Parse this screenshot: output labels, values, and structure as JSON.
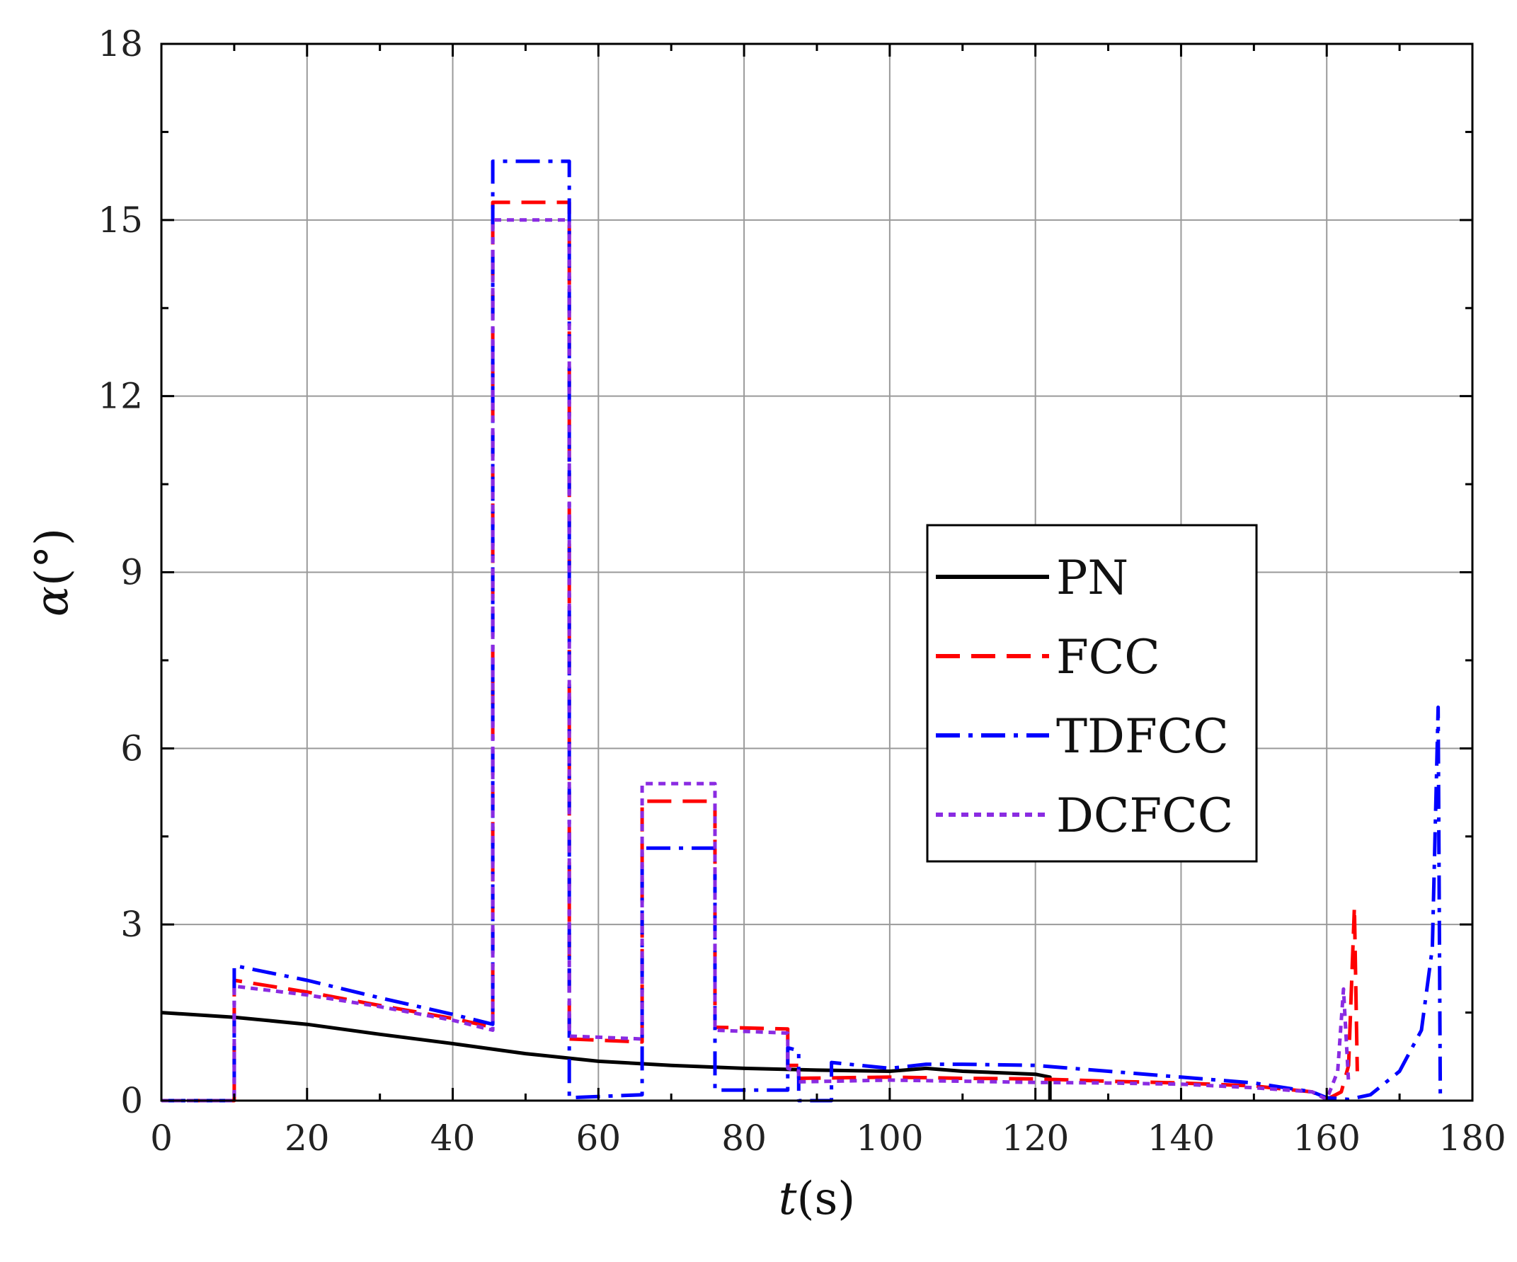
{
  "chart_data": {
    "type": "line",
    "title": "",
    "xlabel": {
      "symbol": "t",
      "unit": "(s)"
    },
    "ylabel": {
      "symbol": "α",
      "unit": "(°)"
    },
    "xlim": [
      0,
      180
    ],
    "ylim": [
      0,
      18
    ],
    "xticks": [
      0,
      20,
      40,
      60,
      80,
      100,
      120,
      140,
      160,
      180
    ],
    "yticks": [
      0,
      3,
      6,
      9,
      12,
      15,
      18
    ],
    "grid": true,
    "legend_position": "center-right",
    "series": [
      {
        "name": "PN",
        "color": "#000000",
        "style": "solid",
        "points": [
          [
            0,
            1.5
          ],
          [
            10,
            1.42
          ],
          [
            20,
            1.3
          ],
          [
            30,
            1.13
          ],
          [
            40,
            0.97
          ],
          [
            50,
            0.8
          ],
          [
            60,
            0.67
          ],
          [
            70,
            0.6
          ],
          [
            80,
            0.55
          ],
          [
            90,
            0.52
          ],
          [
            100,
            0.5
          ],
          [
            105,
            0.55
          ],
          [
            110,
            0.5
          ],
          [
            120,
            0.45
          ],
          [
            122,
            0.4
          ],
          [
            122,
            0
          ]
        ]
      },
      {
        "name": "FCC",
        "color": "#ff0000",
        "style": "dashed",
        "points": [
          [
            0,
            0
          ],
          [
            10,
            0
          ],
          [
            10,
            2.05
          ],
          [
            20,
            1.85
          ],
          [
            30,
            1.62
          ],
          [
            40,
            1.4
          ],
          [
            45.5,
            1.25
          ],
          [
            45.5,
            15.3
          ],
          [
            56,
            15.3
          ],
          [
            56,
            1.05
          ],
          [
            66,
            1.0
          ],
          [
            66,
            5.1
          ],
          [
            76,
            5.1
          ],
          [
            76,
            1.25
          ],
          [
            86,
            1.22
          ],
          [
            86,
            0.6
          ],
          [
            87.5,
            0.6
          ],
          [
            87.5,
            0.38
          ],
          [
            100,
            0.4
          ],
          [
            110,
            0.38
          ],
          [
            120,
            0.37
          ],
          [
            130,
            0.33
          ],
          [
            140,
            0.3
          ],
          [
            150,
            0.25
          ],
          [
            158,
            0.15
          ],
          [
            160,
            0.02
          ],
          [
            162,
            0.15
          ],
          [
            163,
            0.6
          ],
          [
            163.8,
            3.3
          ],
          [
            164.2,
            0.5
          ]
        ]
      },
      {
        "name": "TDFCC",
        "color": "#0000ff",
        "style": "dashdot",
        "points": [
          [
            0,
            0
          ],
          [
            10,
            0
          ],
          [
            10,
            2.3
          ],
          [
            20,
            2.05
          ],
          [
            30,
            1.75
          ],
          [
            40,
            1.47
          ],
          [
            45.5,
            1.3
          ],
          [
            45.5,
            16.0
          ],
          [
            56,
            16.0
          ],
          [
            56,
            0.05
          ],
          [
            66,
            0.1
          ],
          [
            66,
            4.3
          ],
          [
            76,
            4.3
          ],
          [
            76,
            0.18
          ],
          [
            86,
            0.18
          ],
          [
            86,
            0.9
          ],
          [
            87.5,
            0.85
          ],
          [
            87.5,
            0.0
          ],
          [
            92,
            0.0
          ],
          [
            92,
            0.65
          ],
          [
            100,
            0.55
          ],
          [
            105,
            0.62
          ],
          [
            110,
            0.62
          ],
          [
            120,
            0.6
          ],
          [
            130,
            0.5
          ],
          [
            140,
            0.4
          ],
          [
            150,
            0.3
          ],
          [
            158,
            0.15
          ],
          [
            160,
            0.05
          ],
          [
            163,
            0.02
          ],
          [
            166,
            0.1
          ],
          [
            170,
            0.5
          ],
          [
            173,
            1.2
          ],
          [
            174.5,
            2.6
          ],
          [
            175.3,
            6.7
          ],
          [
            175.6,
            0
          ]
        ]
      },
      {
        "name": "DCFCC",
        "color": "#8a2be2",
        "style": "dotted",
        "points": [
          [
            0,
            0
          ],
          [
            10,
            0
          ],
          [
            10,
            1.95
          ],
          [
            20,
            1.8
          ],
          [
            30,
            1.6
          ],
          [
            40,
            1.37
          ],
          [
            45.5,
            1.2
          ],
          [
            45.5,
            15.0
          ],
          [
            56,
            15.0
          ],
          [
            56,
            1.1
          ],
          [
            66,
            1.05
          ],
          [
            66,
            5.4
          ],
          [
            76,
            5.4
          ],
          [
            76,
            1.2
          ],
          [
            86,
            1.15
          ],
          [
            86,
            0.55
          ],
          [
            87.5,
            0.5
          ],
          [
            87.5,
            0.32
          ],
          [
            100,
            0.35
          ],
          [
            110,
            0.33
          ],
          [
            120,
            0.31
          ],
          [
            130,
            0.3
          ],
          [
            140,
            0.28
          ],
          [
            150,
            0.22
          ],
          [
            158,
            0.15
          ],
          [
            160,
            0.02
          ],
          [
            161.5,
            0.5
          ],
          [
            162.3,
            1.9
          ],
          [
            163,
            0.3
          ]
        ]
      }
    ]
  }
}
